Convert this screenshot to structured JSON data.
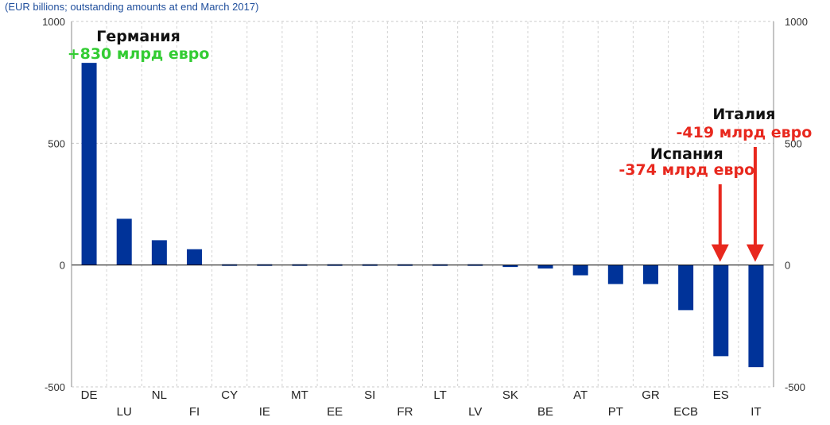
{
  "chart_data": {
    "type": "bar",
    "subtitle": "(EUR billions; outstanding amounts at end March 2017)",
    "categories": [
      "DE",
      "LU",
      "NL",
      "FI",
      "CY",
      "IE",
      "MT",
      "EE",
      "SI",
      "FR",
      "LT",
      "LV",
      "SK",
      "BE",
      "AT",
      "PT",
      "GR",
      "ECB",
      "ES",
      "IT"
    ],
    "values": [
      830,
      190,
      102,
      65,
      5,
      3,
      2,
      1,
      0,
      -1,
      -2,
      -6,
      -8,
      -14,
      -42,
      -78,
      -78,
      -185,
      -374,
      -419
    ],
    "ylim": [
      -500,
      1000
    ],
    "yticks": [
      -500,
      0,
      500,
      1000
    ],
    "grid": true,
    "bar_color": "#003399",
    "annotations": [
      {
        "category": "DE",
        "name": "Германия",
        "value_text": "+830 млрд евро",
        "color": "#33cc33",
        "arrow": false
      },
      {
        "category": "ES",
        "name": "Испания",
        "value_text": "-374 млрд евро",
        "color": "#e8281e",
        "arrow": true
      },
      {
        "category": "IT",
        "name": "Италия",
        "value_text": "-419 млрд евро",
        "color": "#e8281e",
        "arrow": true
      }
    ]
  }
}
